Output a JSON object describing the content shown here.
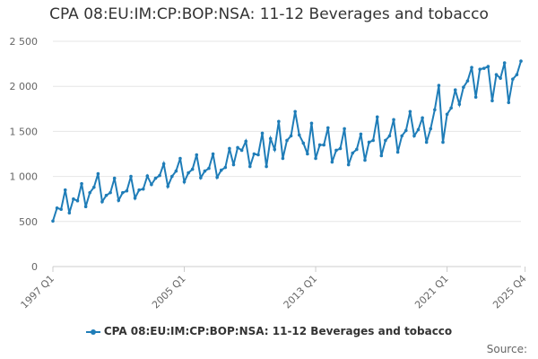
{
  "chart_data": {
    "type": "line",
    "title": "CPA 08:EU:IM:CP:BOP:NSA: 11-12 Beverages and tobacco",
    "xlabel": "",
    "ylabel": "",
    "ylim": [
      0,
      2500
    ],
    "y_ticks": [
      "0",
      "500",
      "1 000",
      "1 500",
      "2 000",
      "2 500"
    ],
    "y_tick_values": [
      0,
      500,
      1000,
      1500,
      2000,
      2500
    ],
    "x_tick_labels": [
      "1997 Q1",
      "2005 Q1",
      "2013 Q1",
      "2021 Q1",
      "2025 Q4"
    ],
    "x_tick_indices": [
      0,
      32,
      64,
      96,
      115
    ],
    "grid": true,
    "legend_position": "bottom",
    "color": "#1f7db8",
    "series": [
      {
        "name": "CPA 08:EU:IM:CP:BOP:NSA: 11-12 Beverages and tobacco",
        "values": [
          505,
          650,
          635,
          850,
          595,
          750,
          730,
          920,
          665,
          820,
          880,
          1030,
          720,
          790,
          820,
          980,
          735,
          820,
          840,
          1000,
          760,
          850,
          860,
          1005,
          910,
          980,
          1010,
          1140,
          890,
          1000,
          1060,
          1200,
          940,
          1040,
          1080,
          1240,
          985,
          1060,
          1090,
          1250,
          990,
          1070,
          1100,
          1310,
          1130,
          1320,
          1290,
          1390,
          1110,
          1250,
          1240,
          1480,
          1110,
          1420,
          1300,
          1610,
          1200,
          1400,
          1450,
          1720,
          1460,
          1370,
          1250,
          1590,
          1200,
          1350,
          1350,
          1540,
          1160,
          1290,
          1310,
          1530,
          1130,
          1260,
          1300,
          1470,
          1180,
          1380,
          1400,
          1660,
          1230,
          1400,
          1450,
          1630,
          1270,
          1450,
          1510,
          1720,
          1450,
          1520,
          1650,
          1380,
          1530,
          1740,
          2010,
          1380,
          1690,
          1760,
          1960,
          1800,
          1990,
          2060,
          2210,
          1880,
          2190,
          2200,
          2220,
          1840,
          2130,
          2090,
          2260,
          1820,
          2080,
          2130,
          2280
        ]
      }
    ]
  },
  "legend": {
    "label": "CPA 08:EU:IM:CP:BOP:NSA: 11-12 Beverages and tobacco"
  },
  "footer": {
    "source": "Source:"
  }
}
